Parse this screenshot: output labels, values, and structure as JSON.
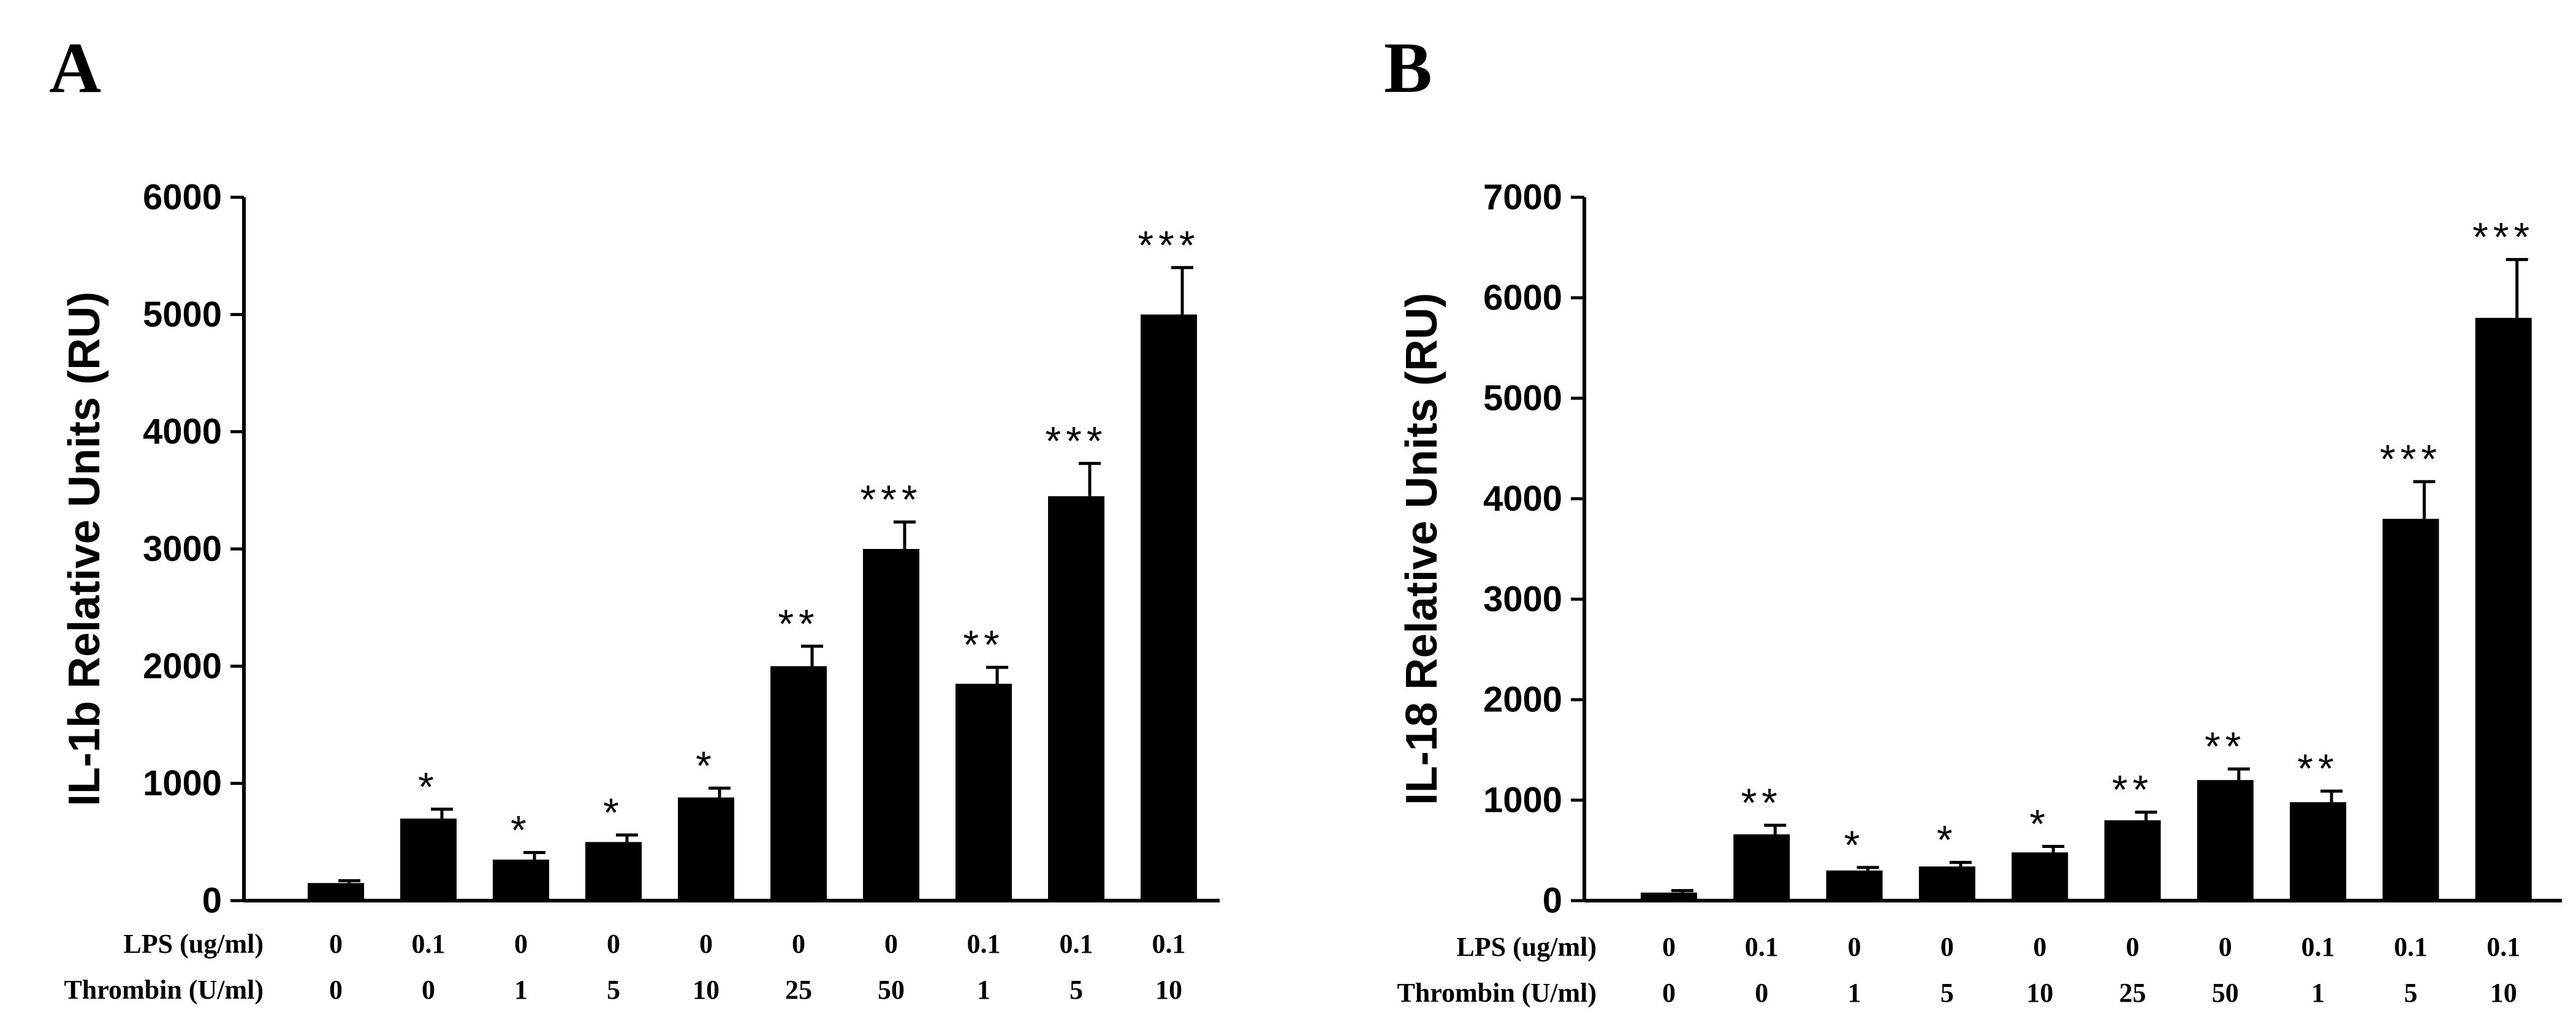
{
  "chart_data": [
    {
      "type": "bar",
      "panel": "A",
      "ylabel": "IL-1b Relative Units (RU)",
      "ylim": [
        0,
        6000
      ],
      "yticks": [
        "0",
        "1000",
        "2000",
        "3000",
        "4000",
        "5000",
        "6000"
      ],
      "row_labels": {
        "lps": "LPS (ug/ml)",
        "thrombin": "Thrombin (U/ml)"
      },
      "lps": [
        "0",
        "0.1",
        "0",
        "0",
        "0",
        "0",
        "0",
        "0.1",
        "0.1",
        "0.1"
      ],
      "thrombin": [
        "0",
        "0",
        "1",
        "5",
        "10",
        "25",
        "50",
        "1",
        "5",
        "10"
      ],
      "values": [
        150,
        700,
        350,
        500,
        880,
        2000,
        3000,
        1850,
        3450,
        5000
      ],
      "errors": [
        20,
        80,
        60,
        60,
        80,
        170,
        230,
        140,
        280,
        400
      ],
      "significance": [
        "",
        "*",
        "*",
        "*",
        "*",
        "**",
        "***",
        "**",
        "***",
        "***"
      ]
    },
    {
      "type": "bar",
      "panel": "B",
      "ylabel": "IL-18 Relative Units (RU)",
      "ylim": [
        0,
        7000
      ],
      "yticks": [
        "0",
        "1000",
        "2000",
        "3000",
        "4000",
        "5000",
        "6000",
        "7000"
      ],
      "row_labels": {
        "lps": "LPS (ug/ml)",
        "thrombin": "Thrombin (U/ml)"
      },
      "lps": [
        "0",
        "0.1",
        "0",
        "0",
        "0",
        "0",
        "0",
        "0.1",
        "0.1",
        "0.1"
      ],
      "thrombin": [
        "0",
        "0",
        "1",
        "5",
        "10",
        "25",
        "50",
        "1",
        "5",
        "10"
      ],
      "values": [
        80,
        660,
        300,
        340,
        480,
        800,
        1200,
        980,
        3800,
        5800
      ],
      "errors": [
        20,
        90,
        30,
        40,
        60,
        80,
        110,
        110,
        370,
        580
      ],
      "significance": [
        "",
        "**",
        "*",
        "*",
        "*",
        "**",
        "**",
        "**",
        "***",
        "***"
      ]
    }
  ]
}
